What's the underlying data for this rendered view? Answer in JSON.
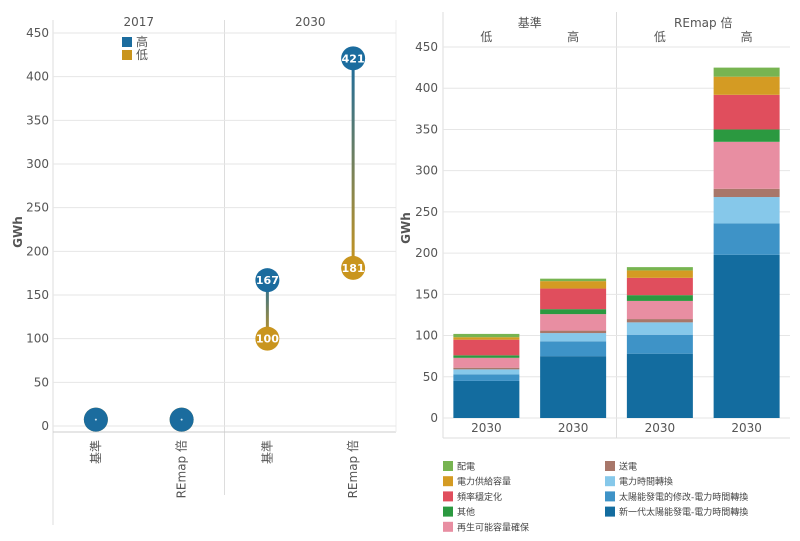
{
  "chart_data": [
    {
      "type": "scatter",
      "ylabel": "GWh",
      "ylim": [
        0,
        450
      ],
      "yticks": [
        0,
        50,
        100,
        150,
        200,
        250,
        300,
        350,
        400,
        450
      ],
      "groups": [
        {
          "label": "2017",
          "categories": [
            "基準",
            "REmap 倍"
          ]
        },
        {
          "label": "2030",
          "categories": [
            "基準",
            "REmap 倍"
          ]
        }
      ],
      "legend_position": "top-left",
      "series": [
        {
          "name": "高",
          "color": "#1b6c9e",
          "values": [
            5,
            5,
            167,
            421
          ]
        },
        {
          "name": "低",
          "color": "#c9951e",
          "values": [
            5,
            5,
            100,
            181
          ]
        }
      ],
      "point_labels": [
        {
          "category_index": 2,
          "series": "高",
          "text": "167"
        },
        {
          "category_index": 2,
          "series": "低",
          "text": "100"
        },
        {
          "category_index": 3,
          "series": "高",
          "text": "421"
        },
        {
          "category_index": 3,
          "series": "低",
          "text": "181"
        }
      ],
      "grid": true
    },
    {
      "type": "bar",
      "stacked": true,
      "ylabel": "GWh",
      "ylim": [
        0,
        450
      ],
      "yticks": [
        0,
        50,
        100,
        150,
        200,
        250,
        300,
        350,
        400,
        450
      ],
      "top_groups": [
        "基準",
        "REmap 倍"
      ],
      "sub_labels": [
        "低",
        "高",
        "低",
        "高"
      ],
      "categories": [
        "2030",
        "2030",
        "2030",
        "2030"
      ],
      "legend_position": "bottom",
      "series": [
        {
          "name": "新一代太陽能發電-電力時間轉換",
          "color": "#136c9f",
          "values": [
            45,
            75,
            78,
            198
          ]
        },
        {
          "name": "太陽能發電的修改-電力時間轉換",
          "color": "#3e93c7",
          "values": [
            8,
            18,
            23,
            38
          ]
        },
        {
          "name": "電力時間轉換",
          "color": "#86c8ea",
          "values": [
            6,
            10,
            15,
            32
          ]
        },
        {
          "name": "送電",
          "color": "#a8776a",
          "values": [
            2,
            3,
            4,
            10
          ]
        },
        {
          "name": "再生可能容量確保",
          "color": "#e88ea2",
          "values": [
            12,
            20,
            22,
            57
          ]
        },
        {
          "name": "其他",
          "color": "#2b9940",
          "values": [
            3,
            6,
            7,
            15
          ]
        },
        {
          "name": "頻率穩定化",
          "color": "#e04e5d",
          "values": [
            19,
            25,
            21,
            42
          ]
        },
        {
          "name": "電力供給容量",
          "color": "#d49b23",
          "values": [
            3,
            9,
            9,
            22
          ]
        },
        {
          "name": "配電",
          "color": "#77b451",
          "values": [
            4,
            3,
            4,
            11
          ]
        }
      ],
      "legend_columns": [
        [
          "配電",
          "電力供給容量",
          "頻率穩定化",
          "其他",
          "再生可能容量確保"
        ],
        [
          "送電",
          "電力時間轉換",
          "太陽能發電的修改-電力時間轉換",
          "新一代太陽能發電-電力時間轉換"
        ]
      ],
      "grid": true
    }
  ]
}
